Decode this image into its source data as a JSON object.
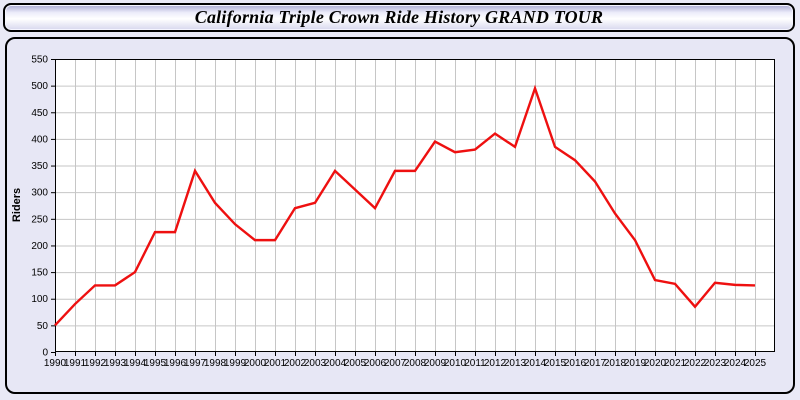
{
  "title": "California Triple Crown Ride History GRAND TOUR",
  "chart_data": {
    "type": "line",
    "title": "California Triple Crown Ride History GRAND TOUR",
    "xlabel": "",
    "ylabel": "Riders",
    "x": [
      1990,
      1991,
      1992,
      1993,
      1994,
      1995,
      1996,
      1997,
      1998,
      1999,
      2000,
      2001,
      2002,
      2003,
      2004,
      2005,
      2006,
      2007,
      2008,
      2009,
      2010,
      2011,
      2012,
      2013,
      2014,
      2015,
      2016,
      2017,
      2018,
      2019,
      2020,
      2021,
      2022,
      2023,
      2024,
      2025
    ],
    "series": [
      {
        "name": "Riders",
        "values": [
          50,
          90,
          125,
          125,
          150,
          225,
          225,
          340,
          280,
          240,
          210,
          210,
          270,
          280,
          340,
          305,
          270,
          340,
          340,
          395,
          375,
          380,
          410,
          385,
          495,
          385,
          360,
          320,
          260,
          210,
          135,
          128,
          85,
          130,
          126,
          125
        ]
      }
    ],
    "ylim": [
      0,
      550
    ],
    "ytick_step": 50,
    "xlim": [
      1990,
      2026
    ],
    "grid": true,
    "legend": "none",
    "line_color": "#ee1010",
    "plot_bg": "#ffffff",
    "grid_color": "#c6c6c6",
    "axis_color": "#000000",
    "panel_bg": "#e7e7f5",
    "page_bg": "#e9e9f6"
  }
}
